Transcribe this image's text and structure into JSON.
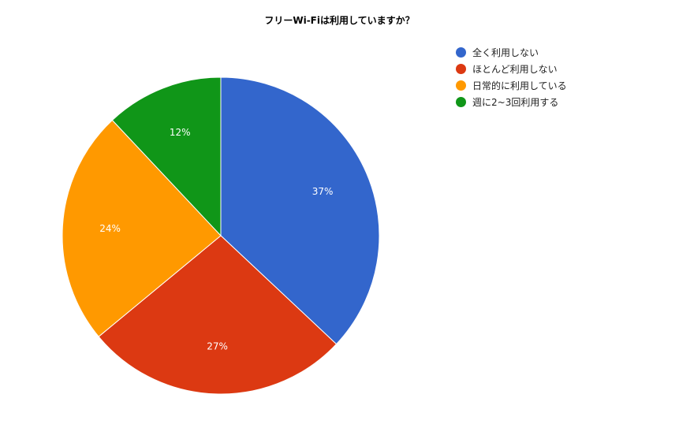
{
  "chart_data": {
    "type": "pie",
    "title": "フリーWi-Fiは利用していますか？",
    "slices": [
      {
        "label": "全く利用しない",
        "value": 37,
        "display": "37%",
        "color": "#3366cc"
      },
      {
        "label": "ほとんど利用しない",
        "value": 27,
        "display": "27%",
        "color": "#dc3912"
      },
      {
        "label": "日常的に利用している",
        "value": 24,
        "display": "24%",
        "color": "#ff9900"
      },
      {
        "label": "週に2~3回利用する",
        "value": 12,
        "display": "12%",
        "color": "#109618"
      }
    ],
    "legend_position": "right"
  }
}
